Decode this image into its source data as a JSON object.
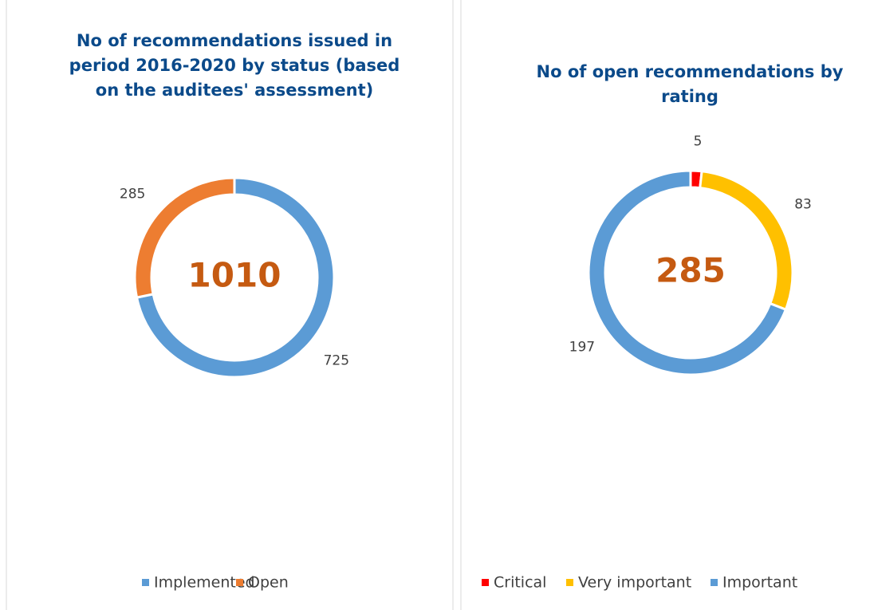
{
  "chart_data": [
    {
      "type": "donut",
      "title": "No of recommendations issued in period 2016-2020 by status (based on the auditees' assessment)",
      "center_label": 1010,
      "categories": [
        "Implemented",
        "Open"
      ],
      "values": [
        725,
        285
      ],
      "colors": [
        "#5b9bd5",
        "#ed7d31"
      ]
    },
    {
      "type": "donut",
      "title": "No of open recommendations by rating",
      "center_label": 285,
      "categories": [
        "Critical",
        "Very important",
        "Important"
      ],
      "values": [
        5,
        83,
        197
      ],
      "colors": [
        "#ff0000",
        "#ffc000",
        "#5b9bd5"
      ]
    }
  ]
}
